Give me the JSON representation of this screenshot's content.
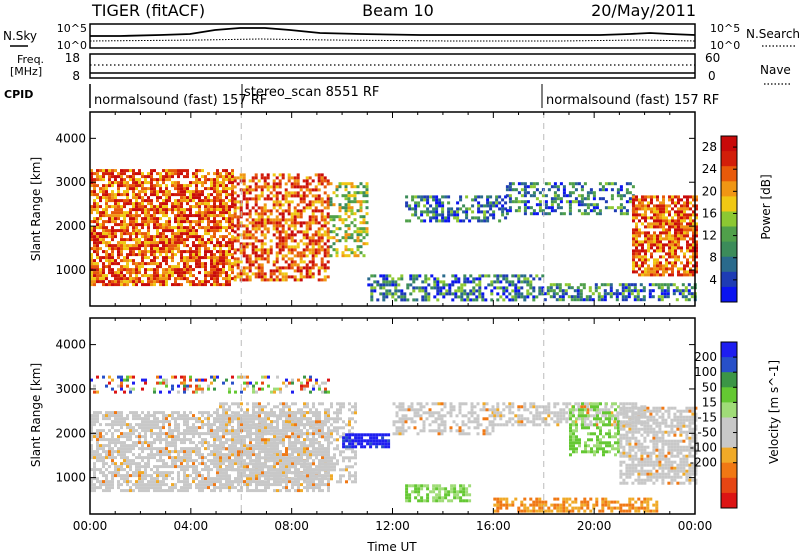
{
  "header": {
    "radar": "TIGER (fitACF)",
    "beam": "Beam 10",
    "date": "20/May/2011"
  },
  "summary_panels": {
    "nsky_label": "N.Sky",
    "nsky_ticks": [
      "10^5",
      "10^0"
    ],
    "nsearch_label": "N.Search",
    "nsearch_ticks": [
      "10^5",
      "10^0"
    ],
    "freq_label_1": "Freq.",
    "freq_label_2": "[MHz]",
    "freq_ticks": [
      "18",
      "8"
    ],
    "nave_label": "Nave",
    "nave_ticks": [
      "60",
      "0"
    ],
    "cpid_label": "CPID",
    "cpid_segments": [
      {
        "label": "normalsound (fast) 157 RF",
        "start_hour": 0,
        "end_hour": 6
      },
      {
        "label": "stereo_scan 8551 RF",
        "start_hour": 6,
        "end_hour": 18
      },
      {
        "label": "normalsound (fast) 157 RF",
        "start_hour": 18,
        "end_hour": 24
      }
    ]
  },
  "colors": {
    "power_scale": [
      "#0a14f0",
      "#1e3cb4",
      "#2a6a8c",
      "#3c8c5a",
      "#50a04a",
      "#8cc832",
      "#f0c814",
      "#f09614",
      "#e85a0a",
      "#d21e0a",
      "#c80a0a"
    ],
    "velocity_scale": [
      "#1e1ef0",
      "#2850c8",
      "#3c9646",
      "#64c832",
      "#a0dc78",
      "#c8c8c8",
      "#c8c8c8",
      "#f0aa28",
      "#f07814",
      "#e64614",
      "#dc1414"
    ]
  },
  "chart_data": [
    {
      "type": "heatmap",
      "title": "",
      "ylabel": "Slant Range [km]",
      "xlabel": "",
      "xlim_hours": [
        0,
        24
      ],
      "ylim": [
        180,
        4600
      ],
      "y_ticks": [
        1000,
        2000,
        3000,
        4000
      ],
      "colorbar": {
        "label": "Power [dB]",
        "range": [
          0,
          30
        ],
        "ticks": [
          4,
          8,
          12,
          16,
          20,
          24,
          28
        ]
      },
      "echo_regions": [
        {
          "t0": 0.0,
          "t1": 5.7,
          "r0": 700,
          "r1": 3300,
          "density": 0.75,
          "level": "high"
        },
        {
          "t0": 5.7,
          "t1": 9.5,
          "r0": 800,
          "r1": 3200,
          "density": 0.6,
          "level": "high"
        },
        {
          "t0": 9.5,
          "t1": 11.0,
          "r0": 1300,
          "r1": 3000,
          "density": 0.45,
          "level": "mid"
        },
        {
          "t0": 11.0,
          "t1": 18.0,
          "r0": 300,
          "r1": 900,
          "density": 0.55,
          "level": "low"
        },
        {
          "t0": 12.5,
          "t1": 16.5,
          "r0": 2100,
          "r1": 2700,
          "density": 0.5,
          "level": "low"
        },
        {
          "t0": 16.5,
          "t1": 21.5,
          "r0": 2300,
          "r1": 3000,
          "density": 0.45,
          "level": "low"
        },
        {
          "t0": 18.0,
          "t1": 24.0,
          "r0": 300,
          "r1": 700,
          "density": 0.6,
          "level": "low"
        },
        {
          "t0": 21.5,
          "t1": 24.0,
          "r0": 900,
          "r1": 2700,
          "density": 0.75,
          "level": "high"
        }
      ]
    },
    {
      "type": "heatmap",
      "title": "",
      "ylabel": "Slant Range [km]",
      "xlabel": "Time UT",
      "xlim_hours": [
        0,
        24
      ],
      "x_ticks": [
        "00:00",
        "04:00",
        "08:00",
        "12:00",
        "16:00",
        "20:00",
        "00:00"
      ],
      "ylim": [
        180,
        4600
      ],
      "y_ticks": [
        1000,
        2000,
        3000,
        4000
      ],
      "colorbar": {
        "label": "Velocity [m s^-1]",
        "range": [
          -250,
          250
        ],
        "ticks": [
          200,
          100,
          50,
          15,
          -15,
          -50,
          -100,
          -200
        ]
      },
      "echo_regions": [
        {
          "t0": 0.0,
          "t1": 9.5,
          "r0": 700,
          "r1": 2500,
          "density": 0.7,
          "level": "zero"
        },
        {
          "t0": 5.0,
          "t1": 10.5,
          "r0": 900,
          "r1": 2700,
          "density": 0.5,
          "level": "zero"
        },
        {
          "t0": 10.0,
          "t1": 11.8,
          "r0": 1700,
          "r1": 2000,
          "density": 0.85,
          "level": "pos_high"
        },
        {
          "t0": 12.0,
          "t1": 16.0,
          "r0": 2000,
          "r1": 2700,
          "density": 0.45,
          "level": "zero"
        },
        {
          "t0": 12.5,
          "t1": 15.0,
          "r0": 450,
          "r1": 850,
          "density": 0.6,
          "level": "pos_low"
        },
        {
          "t0": 16.0,
          "t1": 22.0,
          "r0": 2200,
          "r1": 2700,
          "density": 0.6,
          "level": "zero"
        },
        {
          "t0": 16.0,
          "t1": 22.5,
          "r0": 250,
          "r1": 550,
          "density": 0.6,
          "level": "neg_low"
        },
        {
          "t0": 19.0,
          "t1": 21.0,
          "r0": 1500,
          "r1": 2700,
          "density": 0.45,
          "level": "pos_low"
        },
        {
          "t0": 21.0,
          "t1": 24.0,
          "r0": 900,
          "r1": 2600,
          "density": 0.75,
          "level": "zero"
        },
        {
          "t0": 0.0,
          "t1": 9.5,
          "r0": 2900,
          "r1": 3300,
          "density": 0.3,
          "level": "mixed"
        }
      ]
    }
  ]
}
